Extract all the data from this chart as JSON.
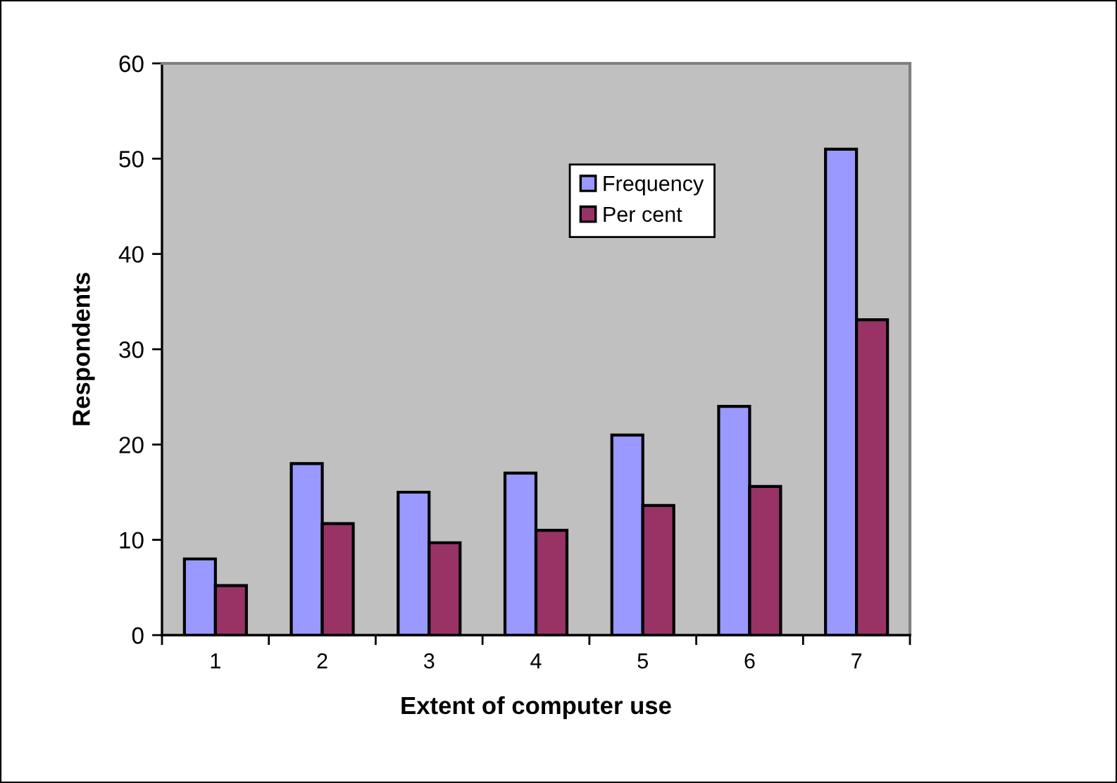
{
  "chart_data": {
    "type": "bar",
    "xlabel": "Extent of computer use",
    "ylabel": "Respondents",
    "categories": [
      "1",
      "2",
      "3",
      "4",
      "5",
      "6",
      "7"
    ],
    "series": [
      {
        "name": "Frequency",
        "color": "#9999ff",
        "values": [
          8,
          18,
          15,
          17,
          21,
          24,
          51
        ]
      },
      {
        "name": "Per cent",
        "color": "#993366",
        "values": [
          5.2,
          11.7,
          9.7,
          11.0,
          13.6,
          15.6,
          33.1
        ]
      }
    ],
    "ylim": [
      0,
      60
    ],
    "yticks": [
      0,
      10,
      20,
      30,
      40,
      50,
      60
    ],
    "legend": "top"
  }
}
